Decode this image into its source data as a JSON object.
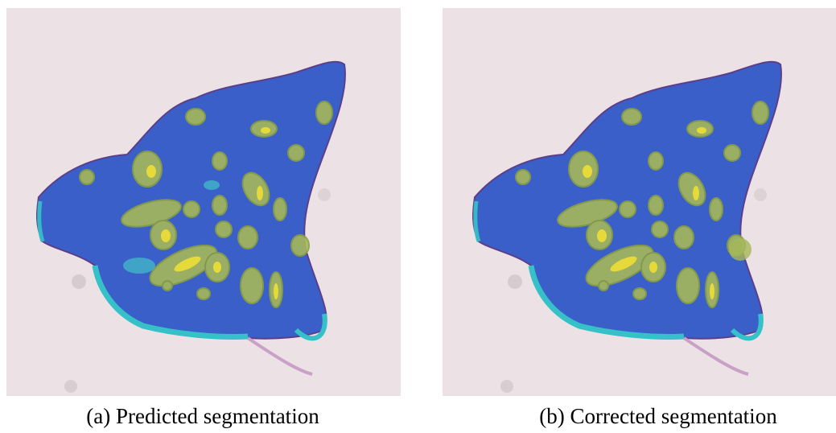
{
  "figures": [
    {
      "caption": "(a) Predicted segmentation"
    },
    {
      "caption": "(b) Corrected segmentation"
    }
  ]
}
